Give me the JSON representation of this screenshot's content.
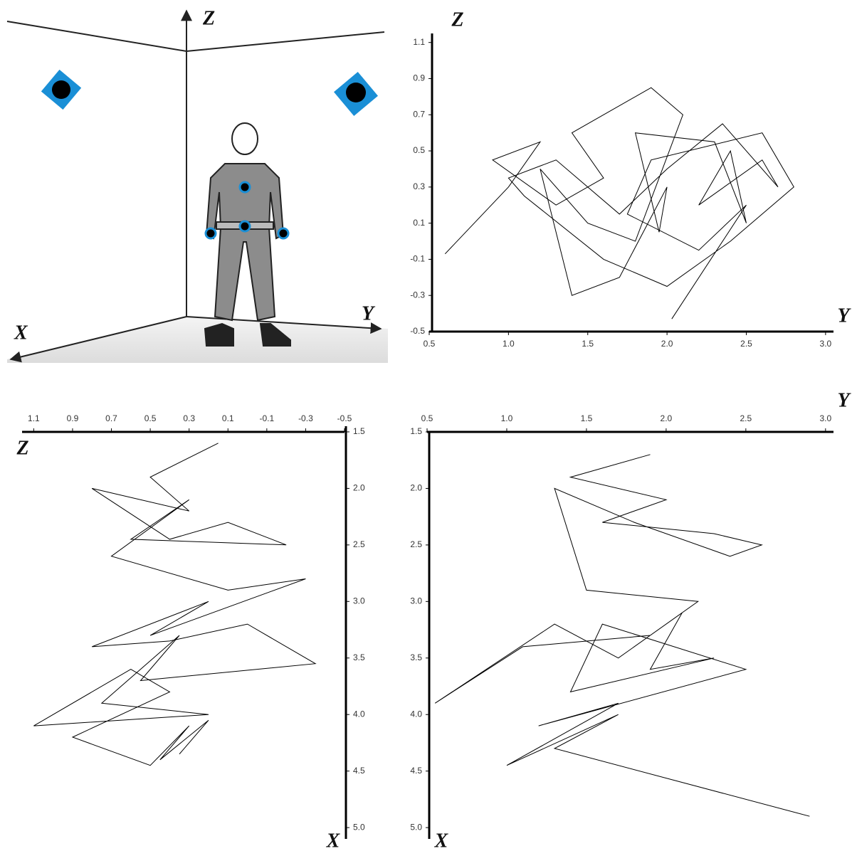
{
  "diagram": {
    "axis_labels": {
      "z": "Z",
      "y": "Y",
      "x": "X"
    }
  },
  "chart_data": [
    {
      "type": "line",
      "x_label": "Y",
      "y_label": "Z",
      "color": "#000000",
      "x": [
        0.6,
        1.0,
        1.2,
        0.9,
        1.3,
        1.6,
        1.4,
        1.9,
        2.1,
        1.8,
        1.5,
        1.2,
        1.4,
        1.7,
        2.0,
        1.95,
        1.8,
        2.3,
        2.5,
        2.4,
        2.2,
        2.6,
        2.7,
        2.35,
        2.0,
        1.7,
        1.3,
        1.0,
        1.1,
        1.6,
        2.0,
        2.4,
        2.8,
        2.6,
        1.9,
        1.75,
        2.2,
        2.5,
        2.03
      ],
      "values": [
        -0.07,
        0.3,
        0.55,
        0.45,
        0.2,
        0.35,
        0.6,
        0.85,
        0.7,
        0.0,
        0.1,
        0.4,
        -0.3,
        -0.2,
        0.3,
        0.05,
        0.6,
        0.55,
        0.1,
        0.5,
        0.2,
        0.45,
        0.3,
        0.65,
        0.4,
        0.15,
        0.45,
        0.35,
        0.25,
        -0.1,
        -0.25,
        0.0,
        0.3,
        0.6,
        0.45,
        0.15,
        -0.05,
        0.2,
        -0.43
      ],
      "xlim": [
        0.5,
        3.05
      ],
      "ylim": [
        -0.5,
        1.15
      ],
      "xticks": [
        0.5,
        {
          "value": 1,
          "label": "1.0"
        },
        1.5,
        {
          "value": 2,
          "label": "2.0"
        },
        2.5,
        {
          "value": 3,
          "label": "3.0"
        }
      ],
      "yticks": [
        -0.5,
        -0.3,
        -0.1,
        0.1,
        0.3,
        0.5,
        0.7,
        0.9,
        1.1
      ]
    },
    {
      "type": "line",
      "x_label": "Z",
      "y_label": "X",
      "color": "#000000",
      "x": [
        0.15,
        0.5,
        0.3,
        0.8,
        0.4,
        0.1,
        -0.2,
        0.6,
        0.3,
        0.7,
        0.1,
        -0.3,
        0.5,
        0.2,
        0.8,
        0.4,
        0.0,
        -0.35,
        0.55,
        0.35,
        0.75,
        0.2,
        1.1,
        0.6,
        0.4,
        0.9,
        0.5,
        0.3,
        0.45,
        0.2,
        0.35
      ],
      "values": [
        1.6,
        1.9,
        2.2,
        2.0,
        2.45,
        2.3,
        2.5,
        2.45,
        2.1,
        2.6,
        2.9,
        2.8,
        3.3,
        3.0,
        3.4,
        3.35,
        3.2,
        3.55,
        3.7,
        3.3,
        3.9,
        4.0,
        4.1,
        3.6,
        3.8,
        4.2,
        4.45,
        4.1,
        4.4,
        4.05,
        4.35
      ],
      "xlim": [
        1.16,
        -0.5
      ],
      "ylim": [
        5.1,
        1.45
      ],
      "xticks": [
        1.1,
        0.9,
        0.7,
        0.5,
        0.3,
        0.1,
        -0.1,
        -0.3,
        -0.5
      ],
      "yticks": [
        1.5,
        {
          "value": 2,
          "label": "2.0"
        },
        2.5,
        {
          "value": 3,
          "label": "3.0"
        },
        3.5,
        {
          "value": 4,
          "label": "4.0"
        },
        4.5,
        {
          "value": 5,
          "label": "5.0"
        }
      ]
    },
    {
      "type": "line",
      "x_label": "Y",
      "y_label": "X",
      "color": "#000000",
      "x": [
        1.9,
        1.4,
        2.0,
        1.6,
        2.3,
        2.6,
        2.4,
        1.8,
        1.3,
        1.5,
        2.2,
        1.9,
        1.1,
        0.55,
        1.3,
        1.7,
        2.1,
        1.9,
        2.3,
        1.4,
        1.6,
        2.5,
        1.2,
        1.7,
        1.0,
        1.7,
        1.3,
        2.9
      ],
      "values": [
        1.7,
        1.9,
        2.1,
        2.3,
        2.4,
        2.5,
        2.6,
        2.3,
        2.0,
        2.9,
        3.0,
        3.3,
        3.4,
        3.9,
        3.2,
        3.5,
        3.1,
        3.6,
        3.5,
        3.8,
        3.2,
        3.6,
        4.1,
        3.9,
        4.45,
        4.0,
        4.3,
        4.9
      ],
      "xlim": [
        0.5,
        3.05
      ],
      "ylim": [
        5.1,
        1.5
      ],
      "xticks": [
        0.5,
        {
          "value": 1,
          "label": "1.0"
        },
        1.5,
        {
          "value": 2,
          "label": "2.0"
        },
        2.5,
        {
          "value": 3,
          "label": "3.0"
        }
      ],
      "yticks": [
        1.5,
        {
          "value": 2,
          "label": "2.0"
        },
        2.5,
        {
          "value": 3,
          "label": "3.0"
        },
        3.5,
        {
          "value": 4,
          "label": "4.0"
        },
        4.5,
        {
          "value": 5,
          "label": "5.0"
        }
      ]
    }
  ]
}
